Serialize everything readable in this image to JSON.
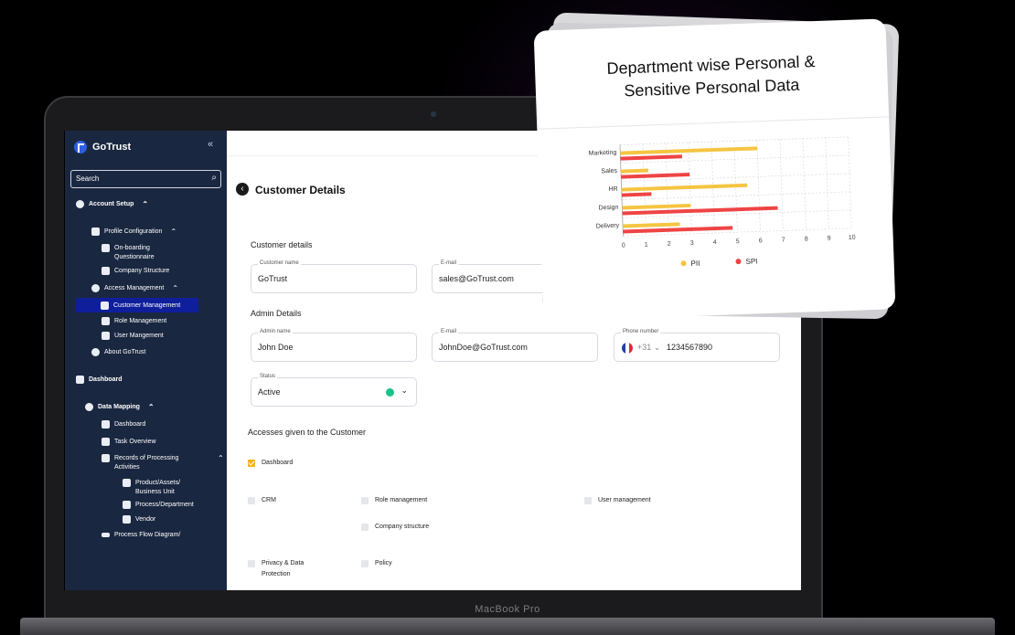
{
  "app": {
    "name": "GoTrust",
    "device_label": "MacBook Pro"
  },
  "sidebar": {
    "search_placeholder": "Search",
    "items": [
      {
        "label": "Account Setup",
        "icon": "users-gear-icon"
      },
      {
        "label": "Profile Configuration",
        "icon": "building-icon"
      },
      {
        "label": "On-boarding Questionnaire",
        "icon": "document-icon"
      },
      {
        "label": "Company Structure",
        "icon": "org-chart-icon"
      },
      {
        "label": "Access Management",
        "icon": "user-key-icon"
      },
      {
        "label": "Customer Management",
        "icon": "user-card-icon",
        "active": true
      },
      {
        "label": "Role Management",
        "icon": "user-card-icon"
      },
      {
        "label": "User Mangement",
        "icon": "user-card-icon"
      },
      {
        "label": "About GoTrust",
        "icon": "info-icon"
      },
      {
        "label": "Dashboard",
        "icon": "grid-icon"
      },
      {
        "label": "Data Mapping",
        "icon": "network-icon"
      },
      {
        "label": "Dashboard",
        "icon": "grid-icon"
      },
      {
        "label": "Task Overview",
        "icon": "task-icon"
      },
      {
        "label": "Records of Processing Activities",
        "icon": "records-icon"
      },
      {
        "label": "Product/Assets/ Business Unit",
        "icon": "document-icon"
      },
      {
        "label": "Process/Department",
        "icon": "document-icon"
      },
      {
        "label": "Vendor",
        "icon": "document-icon"
      },
      {
        "label": "Process Flow Diagram/",
        "icon": "flow-icon"
      }
    ]
  },
  "page": {
    "title": "Customer Details",
    "customer_section": "Customer details",
    "customer_name": {
      "label": "Customer name",
      "value": "GoTrust"
    },
    "customer_email": {
      "label": "E-mail",
      "value": "sales@GoTrust.com"
    },
    "admin_section": "Admin Details",
    "admin_name": {
      "label": "Admin name",
      "value": "John Doe"
    },
    "admin_email": {
      "label": "E-mail",
      "value": "JohnDoe@GoTrust.com"
    },
    "phone": {
      "label": "Phone number",
      "country_code": "+31",
      "value": "1234567890"
    },
    "status": {
      "label": "Status",
      "value": "Active",
      "color": "#1ac28a"
    },
    "access_section": "Accesses given to the Customer",
    "accesses": [
      {
        "label": "Dashboard",
        "checked": true
      },
      {
        "label": "CRM",
        "checked": false
      },
      {
        "label": "Role management",
        "checked": false
      },
      {
        "label": "User management",
        "checked": false
      },
      {
        "label": "Company structure",
        "checked": false
      },
      {
        "label": "Privacy & Data Protection",
        "checked": false
      },
      {
        "label": "Policy",
        "checked": false
      }
    ]
  },
  "chart_data": {
    "type": "bar",
    "orientation": "horizontal",
    "title": "Department wise Personal & Sensitive Personal Data",
    "categories": [
      "Marketing",
      "Sales",
      "HR",
      "Design",
      "Delivery"
    ],
    "series": [
      {
        "name": "PII",
        "color": "#f5c542",
        "values": [
          6,
          1.2,
          5.5,
          3,
          2.5
        ]
      },
      {
        "name": "SPI",
        "color": "#ef4444",
        "values": [
          2.7,
          3,
          1.3,
          6.8,
          4.8
        ]
      }
    ],
    "xticks": [
      "0",
      "1",
      "2",
      "3",
      "4",
      "5",
      "6",
      "7",
      "8",
      "9",
      "10"
    ],
    "xlim": [
      0,
      10
    ],
    "grid": true,
    "legend": "bottom"
  }
}
